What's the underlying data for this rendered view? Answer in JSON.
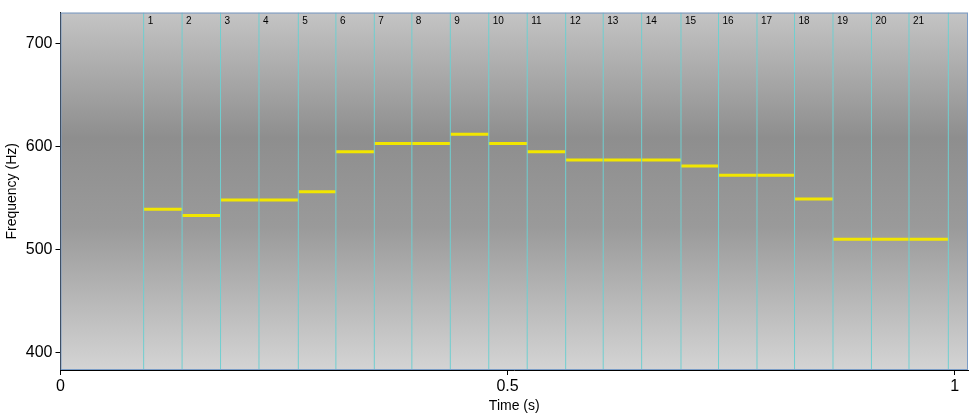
{
  "chart_data": {
    "type": "spectrogram_pitch",
    "x_label": "Time (s)",
    "y_label": "Frequency (Hz)",
    "xlim": [
      0,
      1.015
    ],
    "xticks": [
      0,
      0.5,
      1
    ],
    "ylim": [
      383,
      730
    ],
    "yticks": [
      400,
      500,
      600,
      700
    ],
    "grid": false,
    "color": "#f2e600",
    "segment_numbers": [
      1,
      2,
      3,
      4,
      5,
      6,
      7,
      8,
      9,
      10,
      11,
      12,
      13,
      14,
      15,
      16,
      17,
      18,
      19,
      20,
      21
    ],
    "segment_boundaries": [
      0.093,
      0.136,
      0.179,
      0.222,
      0.266,
      0.308,
      0.351,
      0.393,
      0.436,
      0.479,
      0.522,
      0.565,
      0.607,
      0.65,
      0.694,
      0.736,
      0.779,
      0.821,
      0.864,
      0.907,
      0.949,
      0.993
    ],
    "pitch": [
      539,
      533,
      548,
      548,
      556,
      595,
      603,
      603,
      612,
      603,
      595,
      587,
      587,
      587,
      581,
      572,
      572,
      549,
      510,
      510,
      510
    ]
  }
}
